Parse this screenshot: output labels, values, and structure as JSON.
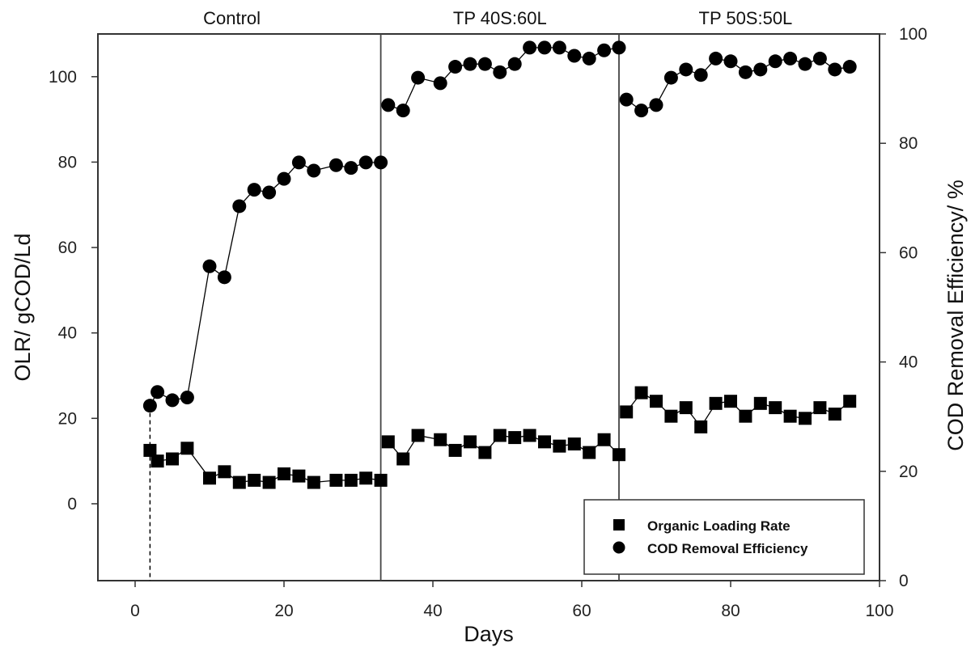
{
  "chart_data": {
    "type": "line",
    "title": "",
    "xlabel": "Days",
    "ylabel": "OLR/ gCOD/Ld",
    "y2label": "COD Removal Efficiency/ %",
    "xlim": [
      -5,
      100
    ],
    "ylim": [
      -18,
      110
    ],
    "y2lim": [
      0,
      100
    ],
    "xticks": [
      0,
      20,
      40,
      60,
      80,
      100
    ],
    "yticks": [
      0,
      20,
      40,
      60,
      80,
      100
    ],
    "y2ticks": [
      0,
      20,
      40,
      60,
      80,
      100
    ],
    "phase_dividers": [
      33,
      65
    ],
    "phases": [
      {
        "label": "Control",
        "center": 13
      },
      {
        "label": "TP 40S:60L",
        "center": 49
      },
      {
        "label": "TP 50S:50L",
        "center": 82
      }
    ],
    "start_marker_day": 2,
    "legend_position": "bottom-right",
    "grid": false,
    "series": [
      {
        "name": "Organic Loading Rate",
        "axis": "left",
        "marker": "square",
        "x": [
          2,
          3,
          5,
          7,
          10,
          12,
          14,
          16,
          18,
          20,
          22,
          24,
          27,
          29,
          31,
          33,
          34,
          36,
          38,
          41,
          43,
          45,
          47,
          49,
          51,
          53,
          55,
          57,
          59,
          61,
          63,
          65,
          66,
          68,
          70,
          72,
          74,
          76,
          78,
          80,
          82,
          84,
          86,
          88,
          90,
          92,
          94,
          96
        ],
        "values": [
          12.5,
          10,
          10.5,
          13,
          6,
          7.5,
          5,
          5.5,
          5,
          7,
          6.5,
          5,
          5.5,
          5.5,
          6,
          5.5,
          14.5,
          10.5,
          16,
          15,
          12.5,
          14.5,
          12,
          16,
          15.5,
          16,
          14.5,
          13.5,
          14,
          12,
          15,
          11.5,
          21.5,
          26,
          24,
          20.5,
          22.5,
          18,
          23.5,
          24,
          20.5,
          23.5,
          22.5,
          20.5,
          20,
          22.5,
          21,
          24
        ]
      },
      {
        "name": "COD Removal Efficiency",
        "axis": "right",
        "marker": "circle",
        "x": [
          2,
          3,
          5,
          7,
          10,
          12,
          14,
          16,
          18,
          20,
          22,
          24,
          27,
          29,
          31,
          33,
          34,
          36,
          38,
          41,
          43,
          45,
          47,
          49,
          51,
          53,
          55,
          57,
          59,
          61,
          63,
          65,
          66,
          68,
          70,
          72,
          74,
          76,
          78,
          80,
          82,
          84,
          86,
          88,
          90,
          92,
          94,
          96
        ],
        "values": [
          32,
          34.5,
          33,
          33.5,
          57.5,
          55.5,
          68.5,
          71.5,
          71,
          73.5,
          76.5,
          75,
          76,
          75.5,
          76.5,
          76.5,
          87,
          86,
          92,
          91,
          94,
          94.5,
          94.5,
          93,
          94.5,
          97.5,
          97.5,
          97.5,
          96,
          95.5,
          97,
          97.5,
          88,
          86,
          87,
          92,
          93.5,
          92.5,
          95.5,
          95,
          93,
          93.5,
          95,
          95.5,
          94.5,
          95.5,
          93.5,
          94
        ]
      }
    ]
  }
}
